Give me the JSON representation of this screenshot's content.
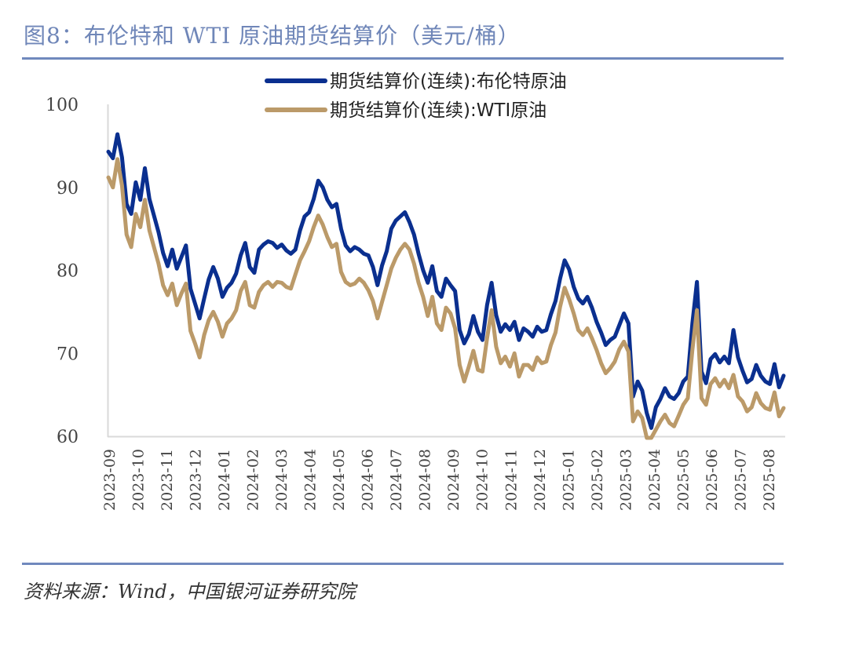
{
  "header": {
    "title": "图8：布伦特和 WTI 原油期货结算价（美元/桶）"
  },
  "footer": {
    "source": "资料来源：Wind，中国银河证券研究院"
  },
  "chart_data": {
    "type": "line",
    "title": "布伦特和 WTI 原油期货结算价（美元/桶）",
    "xlabel": "",
    "ylabel": "美元/桶",
    "ylim": [
      60,
      100
    ],
    "yticks": [
      60,
      70,
      80,
      90,
      100
    ],
    "xticks": [
      "2023-09",
      "2023-10",
      "2023-11",
      "2023-12",
      "2024-01",
      "2024-02",
      "2024-03",
      "2024-04",
      "2024-05",
      "2024-06",
      "2024-07",
      "2024-08",
      "2024-09",
      "2024-10",
      "2024-11",
      "2024-12",
      "2025-01",
      "2025-02",
      "2025-03",
      "2025-04",
      "2025-05",
      "2025-06",
      "2025-07",
      "2025-08"
    ],
    "grid": false,
    "legend_position": "top-center",
    "x_start": "2023-09-01",
    "x_step": "weekly",
    "series": [
      {
        "name": "期货结算价(连续):布伦特原油",
        "color": "#0a2f8f",
        "values": [
          94.3,
          93.5,
          96.4,
          93.6,
          88.0,
          86.8,
          90.6,
          88.5,
          92.3,
          88.6,
          86.6,
          84.6,
          82.1,
          80.5,
          82.5,
          80.2,
          81.6,
          83.0,
          77.8,
          76.0,
          74.2,
          76.6,
          78.9,
          80.4,
          79.0,
          76.8,
          77.9,
          78.5,
          79.6,
          81.8,
          83.3,
          80.4,
          79.7,
          82.5,
          83.1,
          83.5,
          83.3,
          82.7,
          83.1,
          82.4,
          82.0,
          82.5,
          84.8,
          86.5,
          87.0,
          88.6,
          90.8,
          90.0,
          88.5,
          87.6,
          88.0,
          85.0,
          83.0,
          82.3,
          82.8,
          82.5,
          82.0,
          81.8,
          80.4,
          78.2,
          80.6,
          82.3,
          85.0,
          86.0,
          86.5,
          87.0,
          85.8,
          84.3,
          82.0,
          80.0,
          78.5,
          80.5,
          77.5,
          76.8,
          79.0,
          78.2,
          77.5,
          72.8,
          71.2,
          72.3,
          74.5,
          72.6,
          71.6,
          75.8,
          78.5,
          74.6,
          72.6,
          73.5,
          72.8,
          73.8,
          71.6,
          73.0,
          72.6,
          72.0,
          73.2,
          72.6,
          72.8,
          74.7,
          76.3,
          79.0,
          81.2,
          80.1,
          78.0,
          76.6,
          76.0,
          76.8,
          75.5,
          73.8,
          72.5,
          71.0,
          71.6,
          72.0,
          73.4,
          74.8,
          73.6,
          64.8,
          66.6,
          65.5,
          62.8,
          61.0,
          63.5,
          64.5,
          65.8,
          64.8,
          64.5,
          65.2,
          66.6,
          67.2,
          73.6,
          78.6,
          67.8,
          66.4,
          69.3,
          69.9,
          68.9,
          69.6,
          68.8,
          72.8,
          69.5,
          67.9,
          66.5,
          66.9,
          68.6,
          67.3,
          66.6,
          66.3,
          68.7,
          65.9,
          67.3
        ]
      },
      {
        "name": "期货结算价(连续):WTI原油",
        "color": "#bb9a69",
        "values": [
          91.2,
          90.0,
          93.4,
          90.2,
          84.3,
          82.8,
          86.8,
          85.2,
          88.5,
          84.8,
          82.8,
          80.8,
          78.2,
          77.0,
          78.4,
          75.8,
          77.2,
          78.4,
          72.7,
          71.2,
          69.5,
          72.2,
          74.0,
          75.0,
          73.8,
          72.0,
          73.6,
          74.2,
          75.2,
          77.5,
          78.6,
          75.8,
          75.5,
          77.4,
          78.2,
          78.6,
          78.0,
          78.6,
          78.5,
          78.0,
          77.8,
          79.5,
          81.2,
          82.3,
          83.5,
          85.2,
          86.6,
          85.5,
          84.0,
          82.8,
          83.2,
          79.8,
          78.6,
          78.2,
          78.4,
          79.0,
          78.5,
          77.6,
          76.3,
          74.2,
          76.2,
          78.2,
          80.2,
          81.5,
          82.5,
          83.2,
          82.5,
          80.8,
          78.5,
          76.8,
          74.5,
          76.8,
          73.6,
          72.8,
          75.5,
          74.8,
          73.0,
          68.6,
          66.6,
          68.4,
          70.3,
          68.0,
          67.8,
          71.8,
          75.2,
          70.8,
          68.8,
          69.6,
          68.4,
          70.0,
          67.2,
          68.6,
          68.6,
          68.0,
          69.5,
          68.8,
          69.0,
          71.0,
          72.5,
          75.6,
          77.9,
          76.5,
          74.8,
          72.8,
          72.2,
          73.0,
          71.8,
          70.4,
          68.8,
          67.6,
          68.2,
          69.0,
          70.5,
          71.4,
          70.2,
          61.8,
          63.0,
          62.2,
          59.5,
          58.2,
          60.8,
          61.8,
          62.6,
          61.6,
          61.2,
          62.5,
          63.8,
          64.6,
          70.4,
          75.2,
          64.6,
          63.8,
          66.3,
          67.0,
          66.0,
          66.8,
          65.8,
          67.4,
          64.8,
          64.2,
          63.0,
          63.5,
          65.2,
          64.0,
          63.4,
          63.2,
          65.3,
          62.4,
          63.4
        ]
      }
    ]
  }
}
